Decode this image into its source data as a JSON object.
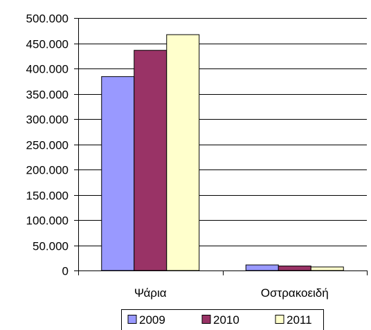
{
  "chart_data": {
    "type": "bar",
    "categories": [
      "Ψάρια",
      "Οστρακοειδή"
    ],
    "series": [
      {
        "name": "2009",
        "color": "#9999ff",
        "values": [
          384000,
          11000
        ]
      },
      {
        "name": "2010",
        "color": "#993366",
        "values": [
          436000,
          9000
        ]
      },
      {
        "name": "2011",
        "color": "#ffffcc",
        "values": [
          467000,
          7000
        ]
      }
    ],
    "ylim": [
      0,
      500000
    ],
    "yticks": [
      0,
      50000,
      100000,
      150000,
      200000,
      250000,
      300000,
      350000,
      400000,
      450000,
      500000
    ],
    "ytick_labels": [
      "0",
      "50.000",
      "100.000",
      "150.000",
      "200.000",
      "250.000",
      "300.000",
      "350.000",
      "400.000",
      "450.000",
      "500.000"
    ],
    "grid": true,
    "legend_position": "bottom",
    "title": "",
    "xlabel": "",
    "ylabel": ""
  }
}
